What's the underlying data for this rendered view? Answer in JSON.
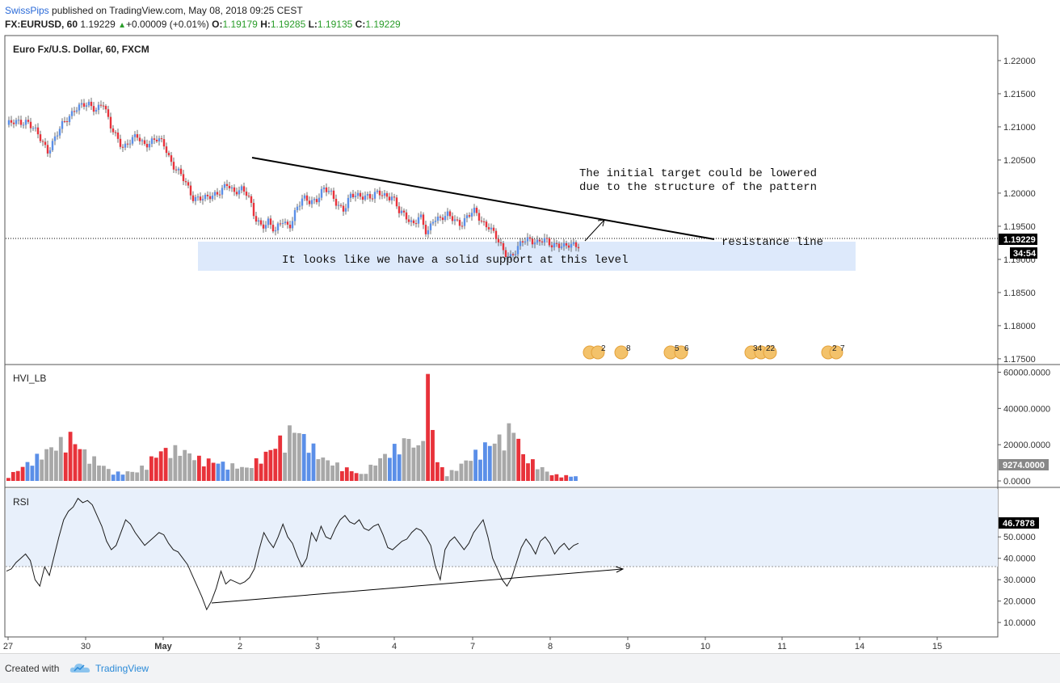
{
  "header": {
    "author": "SwissPips",
    "published_text": "published on TradingView.com, May 08, 2018 09:25 CEST",
    "symbol": "FX:EURUSD, 60",
    "price": "1.19229",
    "change_arrow": "▲",
    "change": "+0.00009 (+0.01%)",
    "o_label": "O:",
    "o_value": "1.19179",
    "h_label": "H:",
    "h_value": "1.19285",
    "l_label": "L:",
    "l_value": "1.19135",
    "c_label": "C:",
    "c_value": "1.19229"
  },
  "footer": {
    "created_with": "Created with",
    "brand": "TradingView"
  },
  "colors": {
    "up": "#5b8fe8",
    "down": "#e8323a",
    "neutral": "#a8a8a8",
    "rsi_band": "#e8f0fb",
    "note_box": "#dde9fb",
    "last_price": "#000000"
  },
  "chart_data": [
    {
      "type": "candlestick",
      "title": "Euro Fx/U.S. Dollar, 60, FXCM",
      "x_tick_labels": [
        "27",
        "30",
        "May",
        "2",
        "3",
        "4",
        "7",
        "8",
        "9",
        "10",
        "11",
        "14",
        "15"
      ],
      "y_tick_labels": [
        "1.22000",
        "1.21500",
        "1.21000",
        "1.20500",
        "1.20000",
        "1.19500",
        "1.19000",
        "1.18500",
        "1.18000",
        "1.17500"
      ],
      "ylim": [
        1.1745,
        1.2228
      ],
      "last_price": "1.19229",
      "countdown": "34:54",
      "close_path": [
        [
          0,
          1.2103
        ],
        [
          3,
          1.211
        ],
        [
          5,
          1.208
        ],
        [
          6,
          1.2065
        ],
        [
          8,
          1.21
        ],
        [
          10,
          1.213
        ],
        [
          12,
          1.2132
        ],
        [
          13,
          1.2128
        ],
        [
          14,
          1.2138
        ],
        [
          15,
          1.21
        ],
        [
          17,
          1.207
        ],
        [
          19,
          1.2085
        ],
        [
          20,
          1.2075
        ],
        [
          22,
          1.208
        ],
        [
          23,
          1.2072
        ],
        [
          24,
          1.2045
        ],
        [
          25,
          1.203
        ],
        [
          26,
          1.2015
        ],
        [
          27,
          1.1995
        ],
        [
          29,
          1.199
        ],
        [
          31,
          1.2005
        ],
        [
          32,
          1.2012
        ],
        [
          33,
          1.1998
        ],
        [
          34,
          1.201
        ],
        [
          35,
          1.2
        ],
        [
          36,
          1.196
        ],
        [
          37,
          1.195
        ],
        [
          38,
          1.196
        ],
        [
          39,
          1.194
        ],
        [
          40,
          1.1958
        ],
        [
          41,
          1.195
        ],
        [
          42,
          1.1975
        ],
        [
          43,
          1.199
        ],
        [
          44,
          1.1988
        ],
        [
          45,
          1.1992
        ],
        [
          46,
          1.2005
        ],
        [
          47,
          1.2
        ],
        [
          48,
          1.1985
        ],
        [
          49,
          1.1975
        ],
        [
          50,
          1.1995
        ],
        [
          52,
          1.1998
        ],
        [
          53,
          1.1992
        ],
        [
          54,
          1.2
        ],
        [
          56,
          1.1995
        ],
        [
          57,
          1.197
        ],
        [
          58,
          1.1965
        ],
        [
          59,
          1.1955
        ],
        [
          60,
          1.1965
        ],
        [
          61,
          1.1935
        ],
        [
          62,
          1.1965
        ],
        [
          63,
          1.1962
        ],
        [
          64,
          1.1965
        ],
        [
          65,
          1.196
        ],
        [
          66,
          1.1955
        ],
        [
          67,
          1.1965
        ],
        [
          68,
          1.1972
        ],
        [
          69,
          1.1958
        ],
        [
          70,
          1.195
        ],
        [
          71,
          1.1932
        ],
        [
          72,
          1.1915
        ],
        [
          73,
          1.1905
        ],
        [
          74,
          1.1912
        ],
        [
          75,
          1.1928
        ],
        [
          76,
          1.1932
        ],
        [
          77,
          1.1926
        ],
        [
          78,
          1.1928
        ],
        [
          79,
          1.1922
        ],
        [
          80,
          1.1925
        ],
        [
          81,
          1.1918
        ],
        [
          82,
          1.192
        ],
        [
          83,
          1.1923
        ]
      ],
      "annotations": {
        "trendline_label": "resistance line",
        "target_note": [
          "The initial target could be lowered",
          "due to the structure of the pattern"
        ],
        "support_note": "It looks like we have a solid support at this level",
        "event_labels": [
          "2",
          "8",
          "5",
          "6",
          "34",
          "22",
          "2",
          "7"
        ]
      }
    },
    {
      "type": "bar",
      "title": "HVI_LB",
      "y_tick_labels": [
        "60000.0000",
        "40000.0000",
        "20000.0000",
        "0.0000"
      ],
      "ylim": [
        0,
        62000
      ],
      "last_value": "9274.0000",
      "bar_count": 120,
      "spike_points": [
        [
          0,
          3000
        ],
        [
          8,
          19000
        ],
        [
          13,
          28000
        ],
        [
          16,
          18000
        ],
        [
          22,
          5000
        ],
        [
          27,
          6000
        ],
        [
          32,
          19000
        ],
        [
          36,
          20000
        ],
        [
          40,
          14000
        ],
        [
          50,
          8000
        ],
        [
          54,
          17000
        ],
        [
          60,
          34000
        ],
        [
          66,
          14000
        ],
        [
          70,
          9000
        ],
        [
          74,
          4000
        ],
        [
          78,
          14000
        ],
        [
          84,
          27000
        ],
        [
          86,
          20000
        ],
        [
          88,
          60000
        ],
        [
          90,
          12000
        ],
        [
          92,
          4000
        ],
        [
          94,
          8000
        ],
        [
          100,
          22000
        ],
        [
          104,
          28000
        ],
        [
          106,
          36000
        ],
        [
          108,
          16000
        ],
        [
          110,
          12000
        ],
        [
          114,
          4000
        ],
        [
          118,
          3000
        ],
        [
          120,
          3000
        ]
      ],
      "color_runs": [
        [
          4,
          "down"
        ],
        [
          3,
          "up"
        ],
        [
          5,
          "neutral"
        ],
        [
          4,
          "down"
        ],
        [
          6,
          "neutral"
        ],
        [
          3,
          "up"
        ],
        [
          5,
          "neutral"
        ],
        [
          4,
          "down"
        ],
        [
          6,
          "neutral"
        ],
        [
          4,
          "down"
        ],
        [
          3,
          "up"
        ],
        [
          5,
          "neutral"
        ],
        [
          6,
          "down"
        ],
        [
          4,
          "neutral"
        ],
        [
          3,
          "up"
        ],
        [
          5,
          "neutral"
        ],
        [
          4,
          "down"
        ],
        [
          6,
          "neutral"
        ],
        [
          3,
          "up"
        ],
        [
          5,
          "neutral"
        ],
        [
          4,
          "down"
        ],
        [
          6,
          "neutral"
        ],
        [
          4,
          "up"
        ],
        [
          5,
          "neutral"
        ],
        [
          4,
          "down"
        ],
        [
          3,
          "neutral"
        ]
      ]
    },
    {
      "type": "line",
      "title": "RSI",
      "y_tick_labels": [
        "50.0000",
        "40.0000",
        "30.0000",
        "20.0000",
        "10.0000"
      ],
      "ylim": [
        4,
        72
      ],
      "band": [
        30,
        70
      ],
      "last_value": "46.7878",
      "values": [
        34,
        35,
        38,
        40,
        42,
        39,
        30,
        27,
        36,
        32,
        41,
        50,
        58,
        62,
        64,
        68,
        66,
        67,
        65,
        60,
        55,
        48,
        44,
        46,
        52,
        58,
        56,
        52,
        49,
        46,
        48,
        50,
        52,
        51,
        47,
        44,
        43,
        40,
        37,
        32,
        27,
        22,
        16,
        20,
        26,
        34,
        28,
        30,
        29,
        28,
        29,
        31,
        35,
        44,
        52,
        48,
        45,
        50,
        56,
        50,
        47,
        41,
        36,
        40,
        52,
        48,
        55,
        50,
        49,
        54,
        58,
        60,
        57,
        56,
        58,
        54,
        53,
        55,
        56,
        51,
        45,
        44,
        46,
        48,
        49,
        52,
        54,
        53,
        50,
        46,
        36,
        30,
        44,
        48,
        50,
        47,
        44,
        47,
        52,
        55,
        58,
        50,
        40,
        35,
        30,
        27,
        31,
        38,
        45,
        49,
        46,
        42,
        48,
        50,
        47,
        42,
        45,
        47,
        44,
        46,
        47
      ]
    }
  ]
}
